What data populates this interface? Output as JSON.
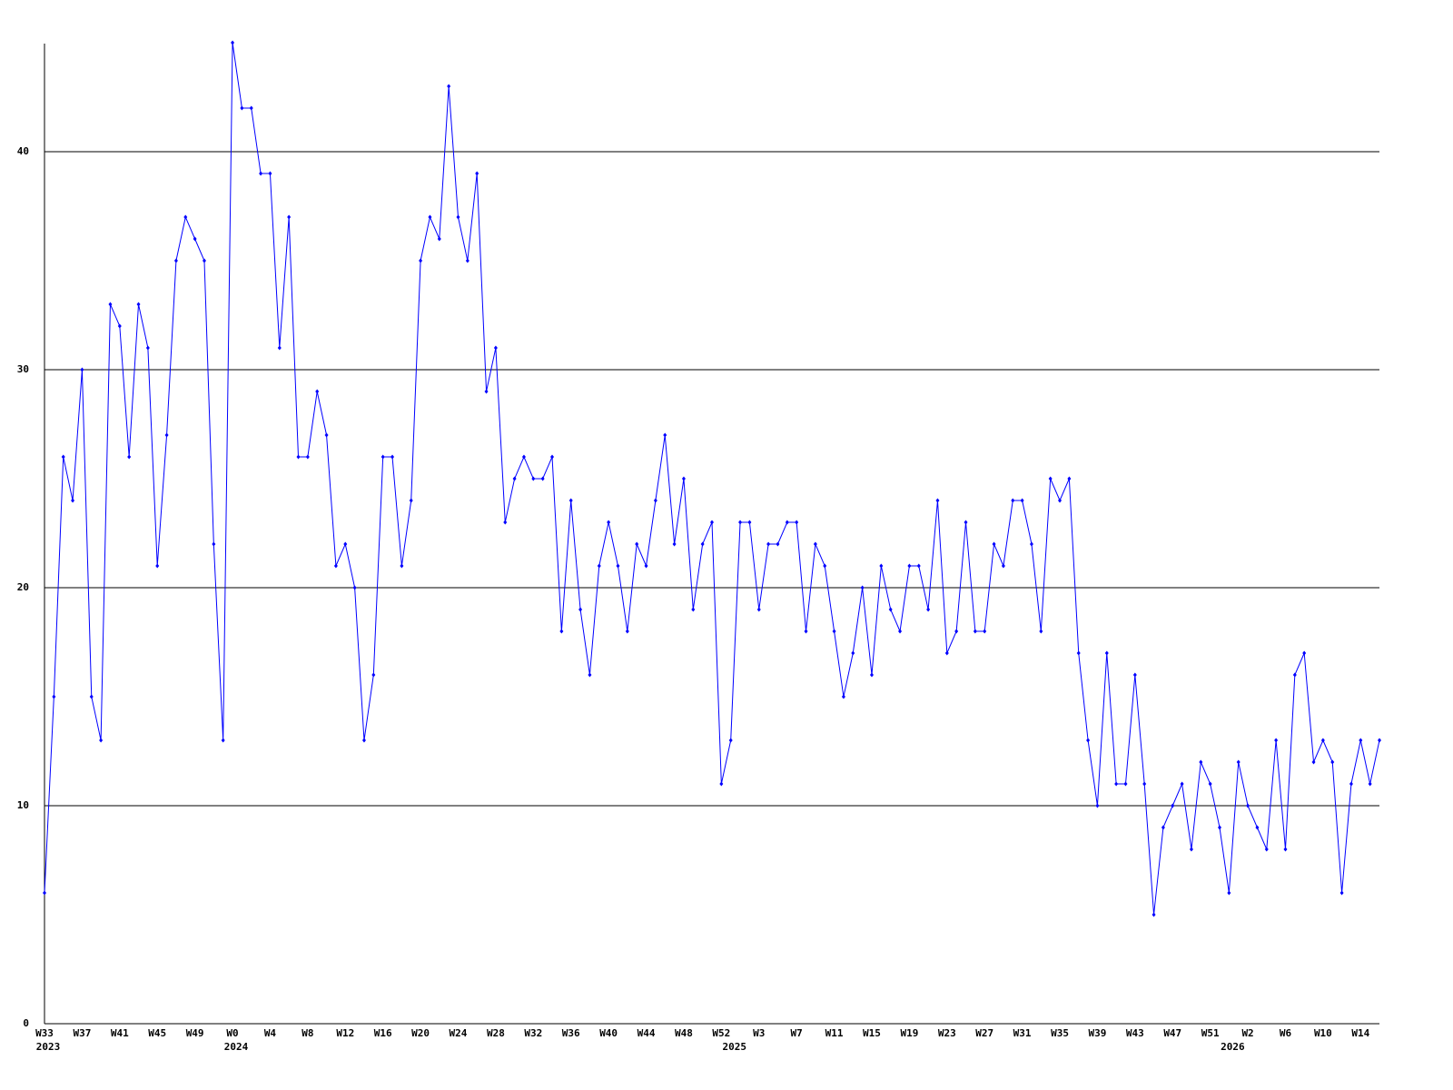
{
  "chart_data": {
    "type": "line",
    "categories": [
      "W33",
      null,
      null,
      null,
      "W37",
      null,
      null,
      null,
      "W41",
      null,
      null,
      null,
      "W45",
      null,
      null,
      null,
      "W49",
      null,
      null,
      null,
      "W0",
      null,
      null,
      null,
      "W4",
      null,
      null,
      null,
      "W8",
      null,
      null,
      null,
      "W12",
      null,
      null,
      null,
      "W16",
      null,
      null,
      null,
      "W20",
      null,
      null,
      null,
      "W24",
      null,
      null,
      null,
      "W28",
      null,
      null,
      null,
      "W32",
      null,
      null,
      null,
      "W36",
      null,
      null,
      null,
      "W40",
      null,
      null,
      null,
      "W44",
      null,
      null,
      null,
      "W48",
      null,
      null,
      null,
      "W52",
      null,
      null,
      null,
      "W3",
      null,
      null,
      null,
      "W7",
      null,
      null,
      null,
      "W11",
      null,
      null,
      null,
      "W15",
      null,
      null,
      null,
      "W19",
      null,
      null,
      null,
      "W23",
      null,
      null,
      null,
      "W27",
      null,
      null,
      null,
      "W31",
      null,
      null,
      null,
      "W35",
      null,
      null,
      null,
      "W39",
      null,
      null,
      null,
      "W43",
      null,
      null,
      null,
      "W47",
      null,
      null,
      null,
      "W51",
      null,
      null,
      null,
      "W2",
      null,
      null,
      null,
      "W6",
      null,
      null,
      null,
      "W10",
      null,
      null,
      null,
      "W14",
      null,
      null
    ],
    "category_years": [
      "2023",
      null,
      null,
      null,
      null,
      null,
      null,
      null,
      null,
      null,
      null,
      null,
      null,
      null,
      null,
      null,
      null,
      null,
      null,
      null,
      "2024",
      null,
      null,
      null,
      null,
      null,
      null,
      null,
      null,
      null,
      null,
      null,
      null,
      null,
      null,
      null,
      null,
      null,
      null,
      null,
      null,
      null,
      null,
      null,
      null,
      null,
      null,
      null,
      null,
      null,
      null,
      null,
      null,
      null,
      null,
      null,
      null,
      null,
      null,
      null,
      null,
      null,
      null,
      null,
      null,
      null,
      null,
      null,
      null,
      null,
      null,
      null,
      null,
      "2025",
      null,
      null,
      null,
      null,
      null,
      null,
      null,
      null,
      null,
      null,
      null,
      null,
      null,
      null,
      null,
      null,
      null,
      null,
      null,
      null,
      null,
      null,
      null,
      null,
      null,
      null,
      null,
      null,
      null,
      null,
      null,
      null,
      null,
      null,
      null,
      null,
      null,
      null,
      null,
      null,
      null,
      null,
      null,
      null,
      null,
      null,
      null,
      null,
      null,
      null,
      null,
      null,
      "2026",
      null,
      null,
      null,
      null,
      null,
      null,
      null,
      null,
      null,
      null,
      null,
      null,
      null,
      null,
      null,
      null
    ],
    "values": [
      6,
      15,
      26,
      24,
      30,
      15,
      13,
      33,
      32,
      26,
      33,
      31,
      21,
      27,
      35,
      37,
      36,
      35,
      22,
      13,
      45,
      42,
      42,
      39,
      39,
      31,
      37,
      26,
      26,
      29,
      27,
      21,
      22,
      20,
      13,
      16,
      26,
      26,
      21,
      24,
      35,
      37,
      36,
      43,
      37,
      35,
      39,
      29,
      31,
      23,
      25,
      26,
      25,
      25,
      26,
      18,
      24,
      19,
      16,
      21,
      23,
      21,
      18,
      22,
      21,
      24,
      27,
      22,
      25,
      19,
      22,
      23,
      11,
      13,
      23,
      23,
      19,
      22,
      22,
      23,
      23,
      18,
      22,
      21,
      18,
      15,
      17,
      20,
      16,
      21,
      19,
      18,
      21,
      21,
      19,
      24,
      17,
      18,
      23,
      18,
      18,
      22,
      21,
      24,
      24,
      22,
      18,
      25,
      24,
      25,
      17,
      13,
      10,
      17,
      11,
      11,
      16,
      11,
      5,
      9,
      10,
      11,
      8,
      12,
      11,
      9,
      6,
      12,
      10,
      9,
      8,
      13,
      8,
      16,
      17,
      12,
      13,
      12,
      6,
      11,
      13,
      11,
      13
    ],
    "color": "#0000ff",
    "ylim": [
      0,
      45
    ],
    "yticks": [
      0,
      10,
      20,
      30,
      40
    ],
    "grid": true
  }
}
